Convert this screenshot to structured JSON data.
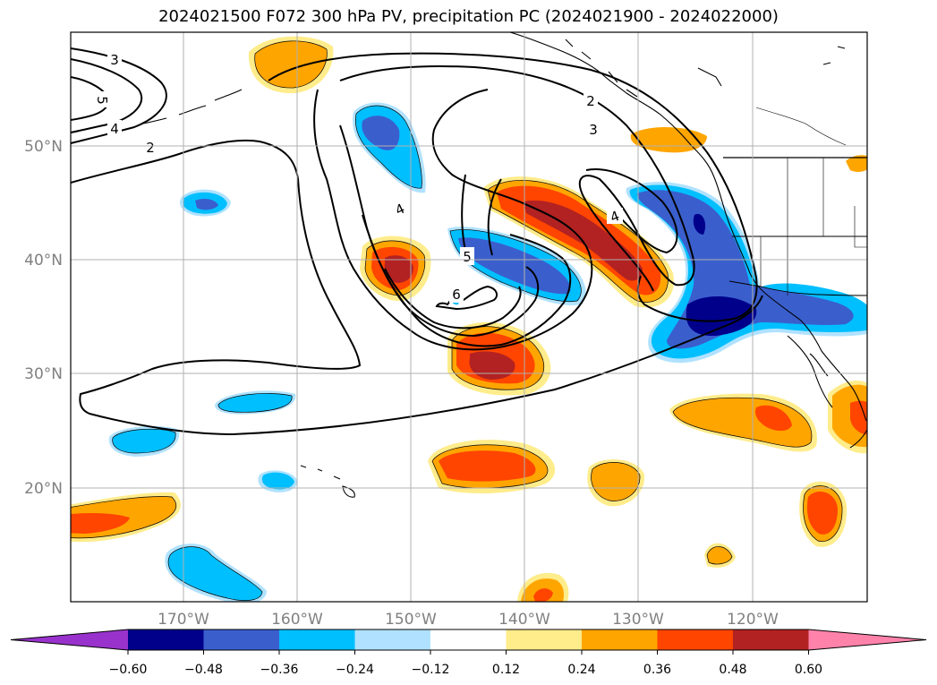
{
  "title": "2024021500 F072 300 hPa PV, precipitation PC (2024021900 - 2024022000)",
  "longitude_labels": [
    "170°W",
    "160°W",
    "150°W",
    "140°W",
    "130°W",
    "120°W"
  ],
  "latitude_labels": [
    "20°N",
    "30°N",
    "40°N",
    "50°N"
  ],
  "contour_labels": [
    "3",
    "5",
    "4",
    "2",
    "2",
    "3",
    "4",
    "4",
    "5",
    "6"
  ],
  "colorbar": {
    "colors": [
      "#9932cc",
      "#00008b",
      "#3a5fcd",
      "#00bfff",
      "#b0e2ff",
      "#ffffff",
      "#ffec8b",
      "#ffa500",
      "#ff4500",
      "#b22222",
      "#ff82ab"
    ],
    "tick_labels": [
      "−0.60",
      "−0.48",
      "−0.36",
      "−0.24",
      "−0.12",
      "0.12",
      "0.24",
      "0.36",
      "0.48",
      "0.60"
    ]
  }
}
